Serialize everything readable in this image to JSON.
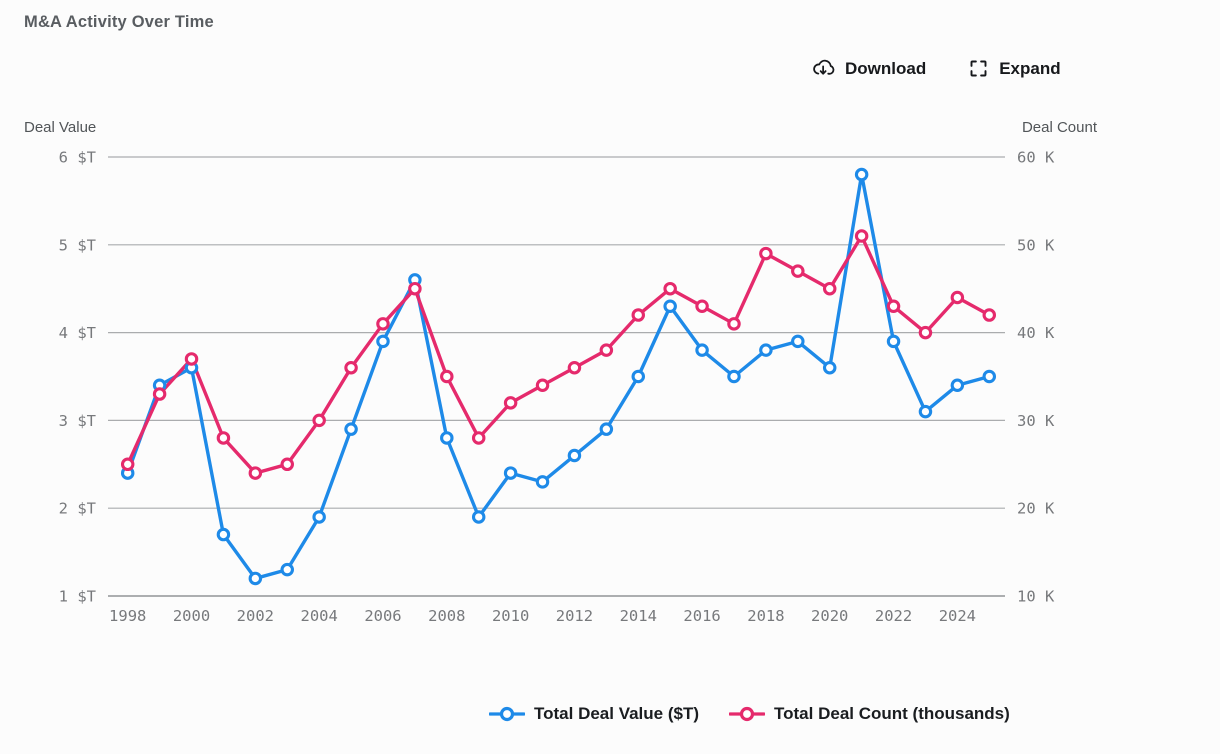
{
  "header": {
    "title": "M&A Activity Over Time"
  },
  "toolbar": {
    "download_label": "Download",
    "expand_label": "Expand",
    "icon_color": "#17191c"
  },
  "chart_data": {
    "type": "line",
    "title": "M&A Activity Over Time",
    "x": [
      1998,
      1999,
      2000,
      2001,
      2002,
      2003,
      2004,
      2005,
      2006,
      2007,
      2008,
      2009,
      2010,
      2011,
      2012,
      2013,
      2014,
      2015,
      2016,
      2017,
      2018,
      2019,
      2020,
      2021,
      2022,
      2023,
      2024,
      2025
    ],
    "x_tick_labels": [
      "1998",
      "2000",
      "2002",
      "2004",
      "2006",
      "2008",
      "2010",
      "2012",
      "2014",
      "2016",
      "2018",
      "2020",
      "2022",
      "2024"
    ],
    "left_axis": {
      "title": "Deal Value",
      "range": [
        1,
        6
      ],
      "tick_labels": [
        "1 $T",
        "2 $T",
        "3 $T",
        "4 $T",
        "5 $T",
        "6 $T"
      ]
    },
    "right_axis": {
      "title": "Deal Count",
      "range": [
        10,
        60
      ],
      "tick_labels": [
        "10 K",
        "20 K",
        "30 K",
        "40 K",
        "50 K",
        "60 K"
      ]
    },
    "grid": {
      "line_color": "#aaacae",
      "axis_line_color": "#7d8083",
      "tick_text_color": "#77797c"
    },
    "series": [
      {
        "name": "Total Deal Value ($T)",
        "axis": "left",
        "color": "#1e8ae8",
        "values": [
          2.4,
          3.4,
          3.6,
          1.7,
          1.2,
          1.3,
          1.9,
          2.9,
          3.9,
          4.6,
          2.8,
          1.9,
          2.4,
          2.3,
          2.6,
          2.9,
          3.5,
          4.3,
          3.8,
          3.5,
          3.8,
          3.9,
          3.6,
          5.8,
          3.9,
          3.1,
          3.4,
          3.5
        ]
      },
      {
        "name": "Total Deal Count (thousands)",
        "axis": "right",
        "color": "#e52a6c",
        "values": [
          25,
          33,
          37,
          28,
          24,
          25,
          30,
          36,
          41,
          45,
          35,
          28,
          32,
          34,
          36,
          38,
          42,
          45,
          43,
          41,
          49,
          47,
          45,
          51,
          43,
          40,
          44,
          42
        ]
      }
    ],
    "legend_position": "bottom"
  }
}
